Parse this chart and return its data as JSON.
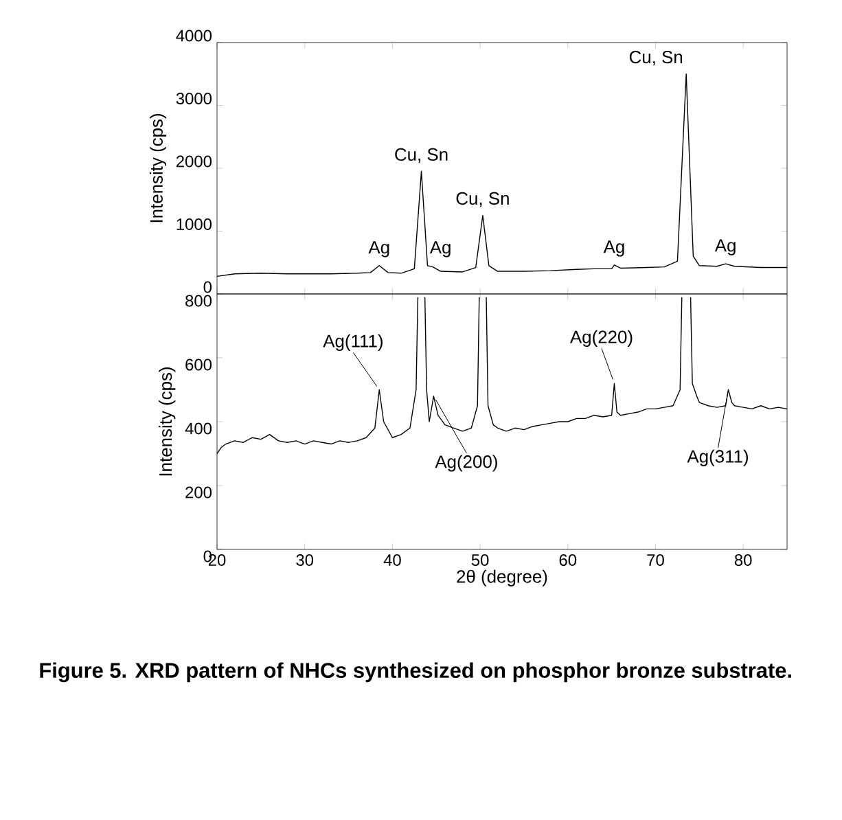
{
  "chart_data": [
    {
      "type": "line",
      "color": "#000000",
      "ylabel": "Intensity (cps)",
      "xlim": [
        20,
        85
      ],
      "ylim": [
        0,
        4000
      ],
      "xticks": [
        20,
        30,
        40,
        50,
        60,
        70,
        80
      ],
      "yticks": [
        0,
        1000,
        2000,
        3000,
        4000
      ],
      "tick_labels": "y",
      "x": [
        20,
        22,
        25,
        28,
        30,
        33,
        36,
        37.5,
        38.5,
        39.5,
        41,
        42.5,
        43.3,
        44,
        44.6,
        45.5,
        48,
        49.5,
        50.3,
        51,
        52,
        55,
        58,
        61,
        63,
        65,
        65.3,
        66,
        69,
        71,
        72.5,
        73.5,
        74.3,
        75,
        77,
        78,
        79,
        82,
        85
      ],
      "values": [
        280,
        320,
        330,
        320,
        320,
        320,
        330,
        340,
        450,
        340,
        330,
        400,
        1950,
        450,
        430,
        360,
        350,
        420,
        1250,
        450,
        360,
        360,
        370,
        390,
        400,
        400,
        460,
        410,
        420,
        430,
        520,
        3500,
        600,
        450,
        440,
        480,
        440,
        420,
        420
      ],
      "annotations": [
        {
          "text": "Ag",
          "x": 38.5,
          "y": 450
        },
        {
          "text": "Cu, Sn",
          "x": 43.3,
          "y": 1950
        },
        {
          "text": "Ag",
          "x": 45.5,
          "y": 450
        },
        {
          "text": "Cu, Sn",
          "x": 50.3,
          "y": 1250
        },
        {
          "text": "Ag",
          "x": 65.3,
          "y": 460
        },
        {
          "text": "Cu, Sn",
          "x": 73.5,
          "y": 3500
        },
        {
          "text": "Ag",
          "x": 78,
          "y": 480
        }
      ]
    },
    {
      "type": "line",
      "color": "#000000",
      "xlabel": "2θ (degree)",
      "ylabel": "Intensity (cps)",
      "xlim": [
        20,
        85
      ],
      "ylim": [
        0,
        800
      ],
      "xticks": [
        20,
        30,
        40,
        50,
        60,
        70,
        80
      ],
      "yticks": [
        0,
        200,
        400,
        600,
        800
      ],
      "x": [
        20,
        20.5,
        21,
        22,
        23,
        24,
        25,
        26,
        27,
        28,
        29,
        30,
        31,
        32,
        33,
        34,
        35,
        36,
        37,
        38,
        38.5,
        39,
        40,
        41,
        42,
        42.7,
        42.9,
        43.3,
        43.7,
        43.9,
        44.2,
        44.7,
        45.2,
        46,
        47,
        48,
        49,
        49.7,
        49.9,
        50.3,
        50.7,
        50.9,
        51.5,
        52,
        53,
        54,
        55,
        56,
        57,
        58,
        59,
        60,
        61,
        62,
        63,
        64,
        65,
        65.3,
        65.6,
        66,
        67,
        68,
        69,
        70,
        71,
        72,
        72.8,
        73.0,
        73.5,
        74.0,
        74.2,
        74.7,
        75,
        76,
        77,
        78,
        78.3,
        78.7,
        79,
        80,
        81,
        82,
        83,
        84,
        85
      ],
      "values": [
        300,
        320,
        330,
        340,
        335,
        350,
        345,
        360,
        340,
        335,
        340,
        330,
        340,
        335,
        330,
        340,
        335,
        340,
        350,
        380,
        500,
        400,
        350,
        360,
        380,
        500,
        790,
        null,
        790,
        500,
        400,
        480,
        420,
        390,
        380,
        370,
        380,
        450,
        790,
        null,
        790,
        450,
        390,
        380,
        370,
        380,
        375,
        385,
        390,
        395,
        400,
        400,
        410,
        410,
        420,
        415,
        420,
        520,
        430,
        420,
        425,
        430,
        440,
        440,
        445,
        450,
        500,
        790,
        null,
        790,
        520,
        480,
        460,
        450,
        445,
        450,
        500,
        460,
        450,
        445,
        440,
        450,
        440,
        445,
        440
      ],
      "annotations": [
        {
          "text": "Ag(111)",
          "x": 38.5,
          "y": 500
        },
        {
          "text": "Ag(200)",
          "x": 44.7,
          "y": 480
        },
        {
          "text": "Ag(220)",
          "x": 65.3,
          "y": 520
        },
        {
          "text": "Ag(311)",
          "x": 78.3,
          "y": 500
        },
        "**Figure 5. XRD pattern of NHCs synthesized on phosphor bronze substrate.**"
      ]
    }
  ]
}
